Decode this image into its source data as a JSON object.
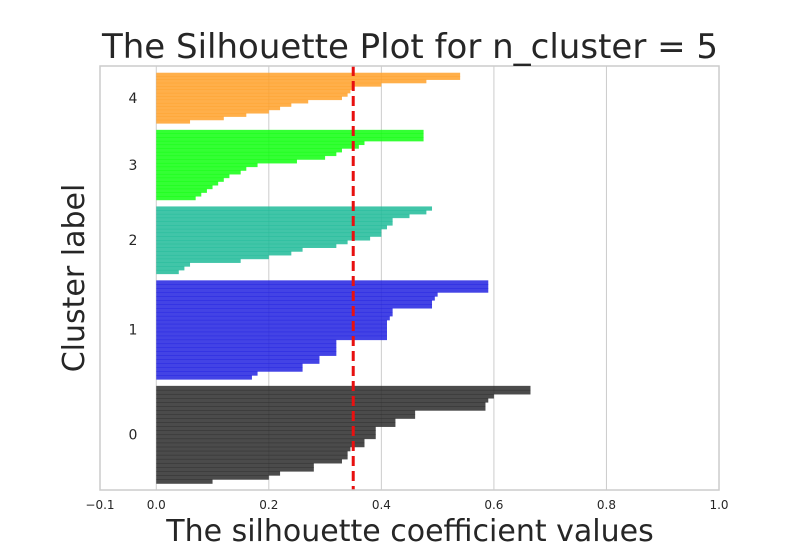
{
  "chart_data": {
    "type": "silhouette",
    "title": "The Silhouette Plot for n_cluster = 5",
    "xlabel": "The silhouette coefficient values",
    "ylabel": "Cluster label",
    "xlim": [
      -0.1,
      1.0
    ],
    "xticks": [
      -0.1,
      0.0,
      0.2,
      0.4,
      0.6,
      0.8,
      1.0
    ],
    "xtick_labels": [
      "−0.1",
      "0.0",
      "0.2",
      "0.4",
      "0.6",
      "0.8",
      "1.0"
    ],
    "grid": "vertical",
    "average_silhouette": 0.35,
    "average_line_color": "#e81010",
    "clusters": [
      {
        "label": "0",
        "color": "#2b2b2b",
        "y_start": 10,
        "count": 145,
        "values": [
          0.665,
          0.665,
          0.6,
          0.59,
          0.585,
          0.585,
          0.46,
          0.46,
          0.425,
          0.425,
          0.39,
          0.39,
          0.39,
          0.37,
          0.37,
          0.345,
          0.34,
          0.34,
          0.33,
          0.28,
          0.28,
          0.22,
          0.2,
          0.1
        ]
      },
      {
        "label": "1",
        "color": "#2222e0",
        "y_start": 165,
        "count": 147,
        "values": [
          0.59,
          0.59,
          0.59,
          0.5,
          0.495,
          0.49,
          0.49,
          0.42,
          0.42,
          0.415,
          0.41,
          0.41,
          0.41,
          0.41,
          0.41,
          0.32,
          0.32,
          0.32,
          0.32,
          0.29,
          0.29,
          0.26,
          0.26,
          0.18,
          0.17
        ]
      },
      {
        "label": "2",
        "color": "#20bb99",
        "y_start": 322,
        "count": 100,
        "values": [
          0.49,
          0.48,
          0.45,
          0.42,
          0.42,
          0.41,
          0.4,
          0.4,
          0.38,
          0.34,
          0.32,
          0.26,
          0.24,
          0.2,
          0.15,
          0.06,
          0.05,
          0.04
        ]
      },
      {
        "label": "3",
        "color": "#11ff11",
        "y_start": 432,
        "count": 104,
        "values": [
          0.475,
          0.475,
          0.475,
          0.37,
          0.36,
          0.33,
          0.32,
          0.3,
          0.25,
          0.18,
          0.16,
          0.15,
          0.13,
          0.12,
          0.11,
          0.1,
          0.09,
          0.08,
          0.07
        ]
      },
      {
        "label": "4",
        "color": "#ffa12a",
        "y_start": 546,
        "count": 75,
        "values": [
          0.54,
          0.54,
          0.48,
          0.4,
          0.35,
          0.345,
          0.34,
          0.33,
          0.27,
          0.24,
          0.22,
          0.2,
          0.16,
          0.12,
          0.06
        ]
      }
    ],
    "ylim": [
      0,
      631
    ]
  }
}
